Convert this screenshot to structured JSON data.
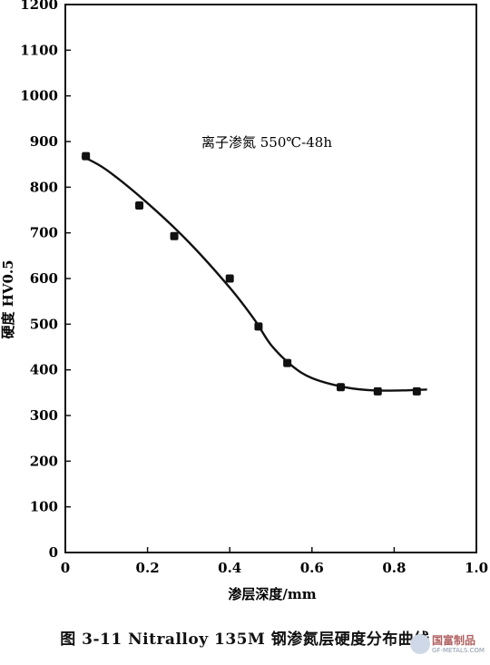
{
  "chart_data": {
    "type": "scatter",
    "xlabel": "渗层深度/mm",
    "ylabel": "硬度  HV0.5",
    "annotation": "离子渗氮   550℃-48h",
    "xlim": [
      0,
      1.0
    ],
    "ylim": [
      0,
      1200
    ],
    "x_ticks": [
      "0",
      "0.2",
      "0.4",
      "0.6",
      "0.8",
      "1.0"
    ],
    "x_tick_values": [
      0,
      0.2,
      0.4,
      0.6,
      0.8,
      1.0
    ],
    "y_ticks": [
      "0",
      "100",
      "200",
      "300",
      "400",
      "500",
      "600",
      "700",
      "800",
      "900",
      "1000",
      "1100",
      "1200"
    ],
    "y_tick_values": [
      0,
      100,
      200,
      300,
      400,
      500,
      600,
      700,
      800,
      900,
      1000,
      1100,
      1200
    ],
    "points": {
      "x": [
        0.05,
        0.18,
        0.265,
        0.4,
        0.47,
        0.54,
        0.67,
        0.76,
        0.855
      ],
      "y": [
        868,
        760,
        693,
        600,
        495,
        415,
        362,
        353,
        353
      ]
    },
    "curve": {
      "x": [
        0.04,
        0.1,
        0.2,
        0.3,
        0.4,
        0.46,
        0.5,
        0.55,
        0.6,
        0.68,
        0.75,
        0.82,
        0.88
      ],
      "y": [
        868,
        838,
        765,
        680,
        580,
        510,
        455,
        410,
        382,
        362,
        355,
        355,
        357
      ]
    }
  },
  "caption": "图 3-11    Nitralloy 135M 钢渗氮层硬度分布曲线",
  "watermark": {
    "text": "国富制品",
    "sub": "GF-METALS.COM"
  }
}
